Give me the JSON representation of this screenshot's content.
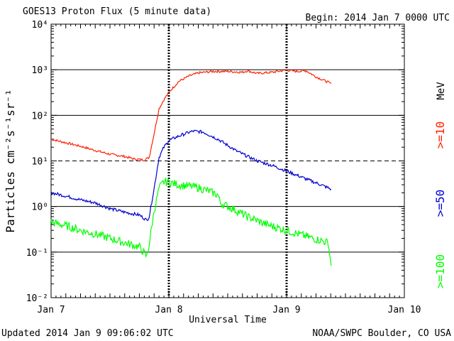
{
  "header": {
    "title": "GOES13 Proton Flux (5 minute data)",
    "begin": "Begin: 2014 Jan 7 0000 UTC"
  },
  "footer": {
    "updated": "Updated 2014 Jan  9 09:06:02 UTC",
    "source": "NOAA/SWPC Boulder, CO USA"
  },
  "chart_data": {
    "type": "line",
    "title": "GOES13 Proton Flux (5 minute data)",
    "xlabel": "Universal Time",
    "ylabel": "Particles cm⁻²s⁻¹sr⁻¹",
    "yscale": "log",
    "ylim": [
      0.01,
      10000
    ],
    "xlim": [
      "2014-01-07T00:00",
      "2014-01-10T00:00"
    ],
    "x_tick_labels": [
      "Jan 7",
      "Jan 8",
      "Jan 9",
      "Jan 10"
    ],
    "y_tick_labels": [
      "10⁻²",
      "10⁻¹",
      "10⁰",
      "10¹",
      "10²",
      "10³",
      "10⁴"
    ],
    "threshold_dashed": 10,
    "grid": "horizontal lines at decades",
    "unit_label": "MeV",
    "series": [
      {
        "name": ">=10",
        "color": "#ff2000",
        "points": [
          [
            "2014-01-07T00:00",
            30
          ],
          [
            "2014-01-07T03:00",
            25
          ],
          [
            "2014-01-07T06:00",
            21
          ],
          [
            "2014-01-07T09:00",
            17
          ],
          [
            "2014-01-07T12:00",
            14
          ],
          [
            "2014-01-07T15:00",
            12.5
          ],
          [
            "2014-01-07T17:00",
            11
          ],
          [
            "2014-01-07T19:00",
            10.5
          ],
          [
            "2014-01-07T20:00",
            12
          ],
          [
            "2014-01-07T21:00",
            40
          ],
          [
            "2014-01-07T22:00",
            140
          ],
          [
            "2014-01-07T23:00",
            220
          ],
          [
            "2014-01-08T00:00",
            320
          ],
          [
            "2014-01-08T02:00",
            550
          ],
          [
            "2014-01-08T04:00",
            720
          ],
          [
            "2014-01-08T06:00",
            850
          ],
          [
            "2014-01-08T09:00",
            920
          ],
          [
            "2014-01-08T12:00",
            920
          ],
          [
            "2014-01-08T15:00",
            880
          ],
          [
            "2014-01-08T16:00",
            950
          ],
          [
            "2014-01-08T18:00",
            830
          ],
          [
            "2014-01-08T21:00",
            880
          ],
          [
            "2014-01-09T00:00",
            980
          ],
          [
            "2014-01-09T02:00",
            920
          ],
          [
            "2014-01-09T04:00",
            950
          ],
          [
            "2014-01-09T06:00",
            700
          ],
          [
            "2014-01-09T08:00",
            560
          ],
          [
            "2014-01-09T09:05",
            500
          ]
        ]
      },
      {
        "name": ">=50",
        "color": "#0000d0",
        "points": [
          [
            "2014-01-07T00:00",
            2.0
          ],
          [
            "2014-01-07T03:00",
            1.7
          ],
          [
            "2014-01-07T06:00",
            1.4
          ],
          [
            "2014-01-07T09:00",
            1.2
          ],
          [
            "2014-01-07T12:00",
            0.9
          ],
          [
            "2014-01-07T15:00",
            0.75
          ],
          [
            "2014-01-07T18:00",
            0.65
          ],
          [
            "2014-01-07T19:30",
            0.5
          ],
          [
            "2014-01-07T20:00",
            0.6
          ],
          [
            "2014-01-07T21:00",
            2.5
          ],
          [
            "2014-01-07T22:00",
            12
          ],
          [
            "2014-01-07T23:00",
            20
          ],
          [
            "2014-01-08T00:00",
            28
          ],
          [
            "2014-01-08T02:00",
            35
          ],
          [
            "2014-01-08T04:00",
            42
          ],
          [
            "2014-01-08T05:00",
            45
          ],
          [
            "2014-01-08T07:00",
            43
          ],
          [
            "2014-01-08T10:00",
            30
          ],
          [
            "2014-01-08T14:00",
            16
          ],
          [
            "2014-01-08T18:00",
            10
          ],
          [
            "2014-01-08T21:00",
            8
          ],
          [
            "2014-01-09T00:00",
            6
          ],
          [
            "2014-01-09T04:00",
            4
          ],
          [
            "2014-01-09T07:00",
            3
          ],
          [
            "2014-01-09T09:05",
            2.4
          ]
        ]
      },
      {
        "name": ">=100",
        "color": "#00ff00",
        "points": [
          [
            "2014-01-07T00:00",
            0.45
          ],
          [
            "2014-01-07T03:00",
            0.38
          ],
          [
            "2014-01-07T06:00",
            0.3
          ],
          [
            "2014-01-07T09:00",
            0.25
          ],
          [
            "2014-01-07T12:00",
            0.2
          ],
          [
            "2014-01-07T15:00",
            0.16
          ],
          [
            "2014-01-07T18:00",
            0.13
          ],
          [
            "2014-01-07T19:30",
            0.08
          ],
          [
            "2014-01-07T20:00",
            0.15
          ],
          [
            "2014-01-07T21:00",
            0.8
          ],
          [
            "2014-01-07T22:00",
            2.5
          ],
          [
            "2014-01-07T23:00",
            3.5
          ],
          [
            "2014-01-08T00:00",
            3.4
          ],
          [
            "2014-01-08T02:00",
            3.0
          ],
          [
            "2014-01-08T04:00",
            2.8
          ],
          [
            "2014-01-08T06:00",
            2.6
          ],
          [
            "2014-01-08T08:00",
            2.2
          ],
          [
            "2014-01-08T10:00",
            1.8
          ],
          [
            "2014-01-08T10:30",
            1.2
          ],
          [
            "2014-01-08T13:00",
            0.9
          ],
          [
            "2014-01-08T16:00",
            0.6
          ],
          [
            "2014-01-08T20:00",
            0.4
          ],
          [
            "2014-01-09T00:00",
            0.3
          ],
          [
            "2014-01-09T04:00",
            0.22
          ],
          [
            "2014-01-09T07:00",
            0.18
          ],
          [
            "2014-01-09T08:30",
            0.16
          ],
          [
            "2014-01-09T09:05",
            0.05
          ]
        ]
      }
    ]
  }
}
